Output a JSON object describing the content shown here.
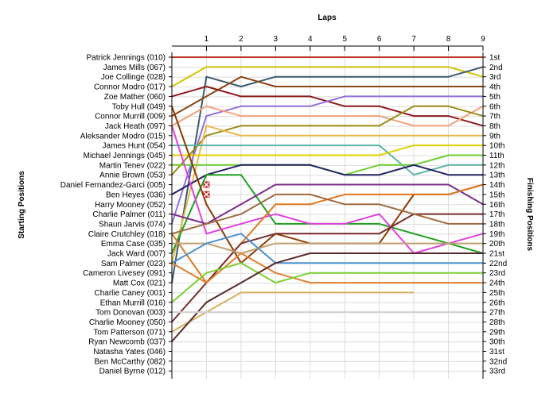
{
  "chart_data": {
    "type": "line",
    "title": "Laps",
    "ylabel_left": "Starting Positions",
    "ylabel_right": "Finishing Positions",
    "laps": [
      0,
      1,
      2,
      3,
      4,
      5,
      6,
      7,
      8,
      9
    ],
    "lap_tick_labels": [
      "1",
      "2",
      "3",
      "4",
      "5",
      "6",
      "7",
      "8",
      "9"
    ],
    "finishing_labels": [
      "1st",
      "2nd",
      "3rd",
      "4th",
      "5th",
      "6th",
      "7th",
      "8th",
      "9th",
      "10th",
      "11th",
      "12th",
      "13th",
      "14th",
      "15th",
      "16th",
      "17th",
      "18th",
      "19th",
      "20th",
      "21st",
      "22nd",
      "23rd",
      "24th",
      "25th",
      "26th",
      "27th",
      "28th",
      "29th",
      "30th",
      "31st",
      "32nd",
      "33rd"
    ],
    "xlim": [
      0,
      9
    ],
    "ylim": [
      1,
      33
    ],
    "grid": true,
    "retirement_marker_color": "#cc2222",
    "series": [
      {
        "name": "Patrick Jennings (010)",
        "color": "#c0392b",
        "positions": [
          1,
          1,
          1,
          1,
          1,
          1,
          1,
          1,
          1,
          1
        ]
      },
      {
        "name": "James Mills (067)",
        "color": "#d4c400",
        "positions": [
          4,
          2,
          2,
          2,
          2,
          2,
          2,
          2,
          2,
          3
        ]
      },
      {
        "name": "Joe Collinge (028)",
        "color": "#3b5c6e",
        "positions": [
          24,
          3,
          4,
          3,
          3,
          3,
          3,
          3,
          3,
          2
        ]
      },
      {
        "name": "Connor Modro (017)",
        "color": "#8b4513",
        "positions": [
          7,
          5,
          3,
          4,
          4,
          4,
          4,
          4,
          4,
          4
        ]
      },
      {
        "name": "Zoe Mather (060)",
        "color": "#8b1a1a",
        "positions": [
          5,
          4,
          5,
          5,
          5,
          6,
          6,
          7,
          7,
          8
        ]
      },
      {
        "name": "Toby Hull (049)",
        "color": "#9370db",
        "positions": [
          18,
          7,
          6,
          6,
          6,
          5,
          5,
          5,
          5,
          5
        ]
      },
      {
        "name": "Connor Murrill (009)",
        "color": "#f4a07a",
        "positions": [
          8,
          6,
          7,
          7,
          7,
          7,
          7,
          8,
          8,
          6
        ]
      },
      {
        "name": "Jack Heath (097)",
        "color": "#9a8c14",
        "positions": [
          13,
          9,
          8,
          8,
          8,
          8,
          8,
          6,
          6,
          7
        ]
      },
      {
        "name": "Aleksander Modro (015)",
        "color": "#e8b84a",
        "positions": [
          22,
          8,
          9,
          9,
          9,
          9,
          9,
          9,
          9,
          9
        ]
      },
      {
        "name": "James Hunt (054)",
        "color": "#5bb5a8",
        "positions": [
          10,
          10,
          10,
          10,
          10,
          10,
          10,
          13,
          12,
          12
        ]
      },
      {
        "name": "Michael Jennings (045)",
        "color": "#e0d000",
        "positions": [
          11,
          11,
          11,
          11,
          11,
          11,
          11,
          10,
          10,
          10
        ]
      },
      {
        "name": "Martin Tenev (022)",
        "color": "#6ccf30",
        "positions": [
          12,
          12,
          12,
          12,
          12,
          13,
          12,
          12,
          11,
          11
        ]
      },
      {
        "name": "Annie Brown (053)",
        "color": "#222266",
        "positions": [
          15,
          13,
          12,
          12,
          12,
          13,
          13,
          12,
          13,
          13
        ]
      },
      {
        "name": "Daniel Fernandez-Garci (005)",
        "color": "#20a020",
        "positions": [
          21,
          13,
          13,
          18,
          18,
          18,
          18,
          19,
          20,
          21
        ]
      },
      {
        "name": "Ben Heyes (036)",
        "color": "#8b3a00",
        "positions": [
          6,
          16,
          22,
          19,
          20,
          20,
          20,
          15,
          15,
          14
        ]
      },
      {
        "name": "Harry Mooney (052)",
        "color": "#e040e0",
        "positions": [
          8,
          19,
          18,
          17,
          18,
          18,
          17,
          21,
          20,
          19
        ]
      },
      {
        "name": "Charlie Palmer (011)",
        "color": "#7b2d8b",
        "positions": [
          17,
          18,
          16,
          14,
          14,
          14,
          14,
          14,
          14,
          16
        ]
      },
      {
        "name": "Shaun Jarvis (074)",
        "color": "#e07820",
        "positions": [
          19,
          24,
          20,
          16,
          16,
          15,
          15,
          15,
          15,
          14
        ]
      },
      {
        "name": "Claire Crutchley (018)",
        "color": "#7a2e2e",
        "positions": [
          28,
          24,
          20,
          19,
          19,
          19,
          19,
          17,
          17,
          17
        ]
      },
      {
        "name": "Emma Case (035)",
        "color": "#a06a40",
        "positions": [
          19,
          18,
          17,
          15,
          15,
          16,
          16,
          17,
          18,
          18
        ]
      },
      {
        "name": "Jack Ward (007)",
        "color": "#c0a070",
        "positions": [
          20,
          20,
          21,
          20,
          20,
          20,
          20,
          20,
          20,
          20
        ]
      },
      {
        "name": "Sam Palmer (023)",
        "color": "#4a90d0",
        "positions": [
          22,
          20,
          19,
          22,
          22,
          22,
          22,
          22,
          22,
          22
        ]
      },
      {
        "name": "Cameron Livesey (091)",
        "color": "#e08030",
        "positions": [
          22,
          24,
          21,
          23,
          24,
          24,
          24,
          24,
          24,
          24
        ]
      },
      {
        "name": "Matt Cox (021)",
        "color": "#7cd030",
        "positions": [
          26,
          23,
          22,
          24,
          23,
          23,
          23,
          23,
          23,
          23
        ]
      },
      {
        "name": "Charlie Caney (001)",
        "color": "#d4b060",
        "positions": [
          29,
          27,
          25,
          25,
          25,
          25,
          25,
          25,
          null,
          null
        ]
      },
      {
        "name": "Ethan Murrill (016)",
        "color": "#5a2a2a",
        "positions": [
          30,
          26,
          24,
          22,
          21,
          21,
          21,
          21,
          21,
          21
        ]
      },
      {
        "name": "Tom Donovan (003)",
        "color": "#d0d0d0",
        "positions": [
          27,
          27,
          27,
          27,
          27,
          27,
          27,
          27,
          27,
          27
        ]
      }
    ],
    "retirements": [
      {
        "name": "Daniel Fernandez-Garci (005)",
        "lap": 1,
        "position": 14
      },
      {
        "name": "Ben Heyes (036)",
        "lap": 1,
        "position": 15
      }
    ],
    "starting_labels": [
      "Patrick Jennings (010)",
      "James Mills (067)",
      "Joe Collinge (028)",
      "Connor Modro (017)",
      "Zoe Mather (060)",
      "Toby Hull (049)",
      "Connor Murrill (009)",
      "Jack Heath (097)",
      "Aleksander Modro (015)",
      "James Hunt (054)",
      "Michael Jennings (045)",
      "Martin Tenev (022)",
      "Annie Brown (053)",
      "Daniel Fernandez-Garci (005)",
      "Ben Heyes (036)",
      "Harry Mooney (052)",
      "Charlie Palmer (011)",
      "Shaun Jarvis (074)",
      "Claire Crutchley (018)",
      "Emma Case (035)",
      "Jack Ward (007)",
      "Sam Palmer (023)",
      "Cameron Livesey (091)",
      "Matt Cox (021)",
      "Charlie Caney (001)",
      "Ethan Murrill (016)",
      "Tom Donovan (003)",
      "Charlie Mooney (050)",
      "Tom Patterson (071)",
      "Ryan Newcomb (037)",
      "Natasha Yates (046)",
      "Ben McCarthy (082)",
      "Daniel Byrne (012)"
    ]
  }
}
